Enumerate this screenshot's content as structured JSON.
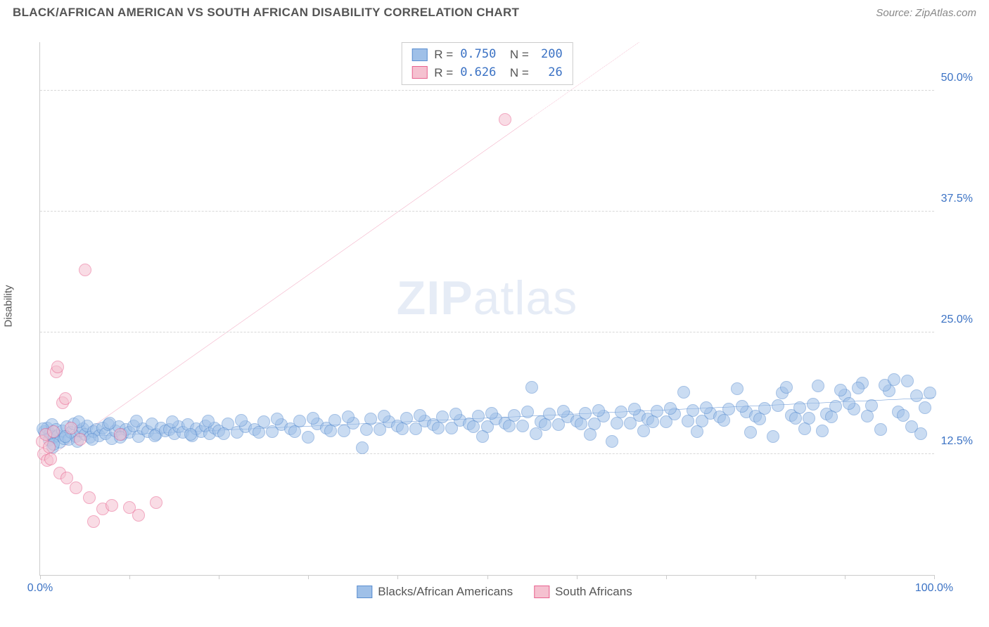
{
  "title": "BLACK/AFRICAN AMERICAN VS SOUTH AFRICAN DISABILITY CORRELATION CHART",
  "source_prefix": "Source: ",
  "source": "ZipAtlas.com",
  "ylabel": "Disability",
  "watermark_bold": "ZIP",
  "watermark_rest": "atlas",
  "watermark_color": "#9fb8dd",
  "chart": {
    "type": "scatter",
    "background_color": "#ffffff",
    "grid_color": "#d8d8d8",
    "axis_color": "#cccccc",
    "xlim": [
      0,
      100
    ],
    "ylim": [
      0,
      55
    ],
    "x_ticks": [
      0,
      10,
      20,
      30,
      40,
      50,
      60,
      70,
      80,
      90,
      100
    ],
    "x_tick_labels": {
      "0": "0.0%",
      "100": "100.0%"
    },
    "y_ticks": [
      12.5,
      25.0,
      37.5,
      50.0
    ],
    "y_tick_labels": [
      "12.5%",
      "25.0%",
      "37.5%",
      "50.0%"
    ],
    "tick_label_color": "#3b72c4",
    "tick_label_fontsize": 16,
    "marker_radius": 9,
    "marker_opacity": 0.55
  },
  "series": [
    {
      "name": "Blacks/African Americans",
      "fill": "#9fc0e8",
      "stroke": "#5a8ed0",
      "line_color": "#2f6fc4",
      "r": "0.750",
      "n": "200",
      "trend": {
        "x1": 0,
        "y1": 14.1,
        "x2": 100,
        "y2": 18.3,
        "dash": false
      },
      "points": [
        [
          0.5,
          14.8
        ],
        [
          0.8,
          15.2
        ],
        [
          1.0,
          13.9
        ],
        [
          1.1,
          14.6
        ],
        [
          1.3,
          15.5
        ],
        [
          1.4,
          13.2
        ],
        [
          1.6,
          14.2
        ],
        [
          1.8,
          15.0
        ],
        [
          2.0,
          14.4
        ],
        [
          2.2,
          13.7
        ],
        [
          2.5,
          14.9
        ],
        [
          2.7,
          14.1
        ],
        [
          3.0,
          15.3
        ],
        [
          3.2,
          14.0
        ],
        [
          3.5,
          14.7
        ],
        [
          3.8,
          15.6
        ],
        [
          4.0,
          14.3
        ],
        [
          4.2,
          13.8
        ],
        [
          4.5,
          14.9
        ],
        [
          4.8,
          15.1
        ],
        [
          5.0,
          14.5
        ],
        [
          5.3,
          15.4
        ],
        [
          5.6,
          14.2
        ],
        [
          6.0,
          14.8
        ],
        [
          6.3,
          15.0
        ],
        [
          6.6,
          14.4
        ],
        [
          7.0,
          15.2
        ],
        [
          7.3,
          14.6
        ],
        [
          7.6,
          15.5
        ],
        [
          8.0,
          14.1
        ],
        [
          8.4,
          14.9
        ],
        [
          8.8,
          15.3
        ],
        [
          9.2,
          14.5
        ],
        [
          9.6,
          15.0
        ],
        [
          10.0,
          14.7
        ],
        [
          10.5,
          15.4
        ],
        [
          11.0,
          14.3
        ],
        [
          11.5,
          15.1
        ],
        [
          12.0,
          14.8
        ],
        [
          12.5,
          15.6
        ],
        [
          13.0,
          14.5
        ],
        [
          13.5,
          15.2
        ],
        [
          14.0,
          14.9
        ],
        [
          14.5,
          15.0
        ],
        [
          15.0,
          14.6
        ],
        [
          15.5,
          15.3
        ],
        [
          16.0,
          14.7
        ],
        [
          16.5,
          15.5
        ],
        [
          17.0,
          14.4
        ],
        [
          17.5,
          15.1
        ],
        [
          18.0,
          14.8
        ],
        [
          18.5,
          15.4
        ],
        [
          19.0,
          14.6
        ],
        [
          19.5,
          15.2
        ],
        [
          20.0,
          14.9
        ],
        [
          21.0,
          15.6
        ],
        [
          22.0,
          14.7
        ],
        [
          23.0,
          15.3
        ],
        [
          24.0,
          15.0
        ],
        [
          25.0,
          15.8
        ],
        [
          26.0,
          14.8
        ],
        [
          27.0,
          15.5
        ],
        [
          28.0,
          15.1
        ],
        [
          29.0,
          15.9
        ],
        [
          30.0,
          14.2
        ],
        [
          31.0,
          15.6
        ],
        [
          32.0,
          15.2
        ],
        [
          33.0,
          16.0
        ],
        [
          34.0,
          14.9
        ],
        [
          35.0,
          15.7
        ],
        [
          36.0,
          13.1
        ],
        [
          37.0,
          16.1
        ],
        [
          38.0,
          15.0
        ],
        [
          39.0,
          15.8
        ],
        [
          40.0,
          15.4
        ],
        [
          41.0,
          16.2
        ],
        [
          42.0,
          15.1
        ],
        [
          43.0,
          15.9
        ],
        [
          44.0,
          15.5
        ],
        [
          45.0,
          16.3
        ],
        [
          46.0,
          15.2
        ],
        [
          47.0,
          16.0
        ],
        [
          48.0,
          15.6
        ],
        [
          49.0,
          16.4
        ],
        [
          50.0,
          15.3
        ],
        [
          51.0,
          16.1
        ],
        [
          52.0,
          15.7
        ],
        [
          53.0,
          16.5
        ],
        [
          54.0,
          15.4
        ],
        [
          55.0,
          19.4
        ],
        [
          56.0,
          15.8
        ],
        [
          57.0,
          16.6
        ],
        [
          58.0,
          15.5
        ],
        [
          59.0,
          16.3
        ],
        [
          60.0,
          15.9
        ],
        [
          61.0,
          16.7
        ],
        [
          62.0,
          15.6
        ],
        [
          63.0,
          16.4
        ],
        [
          64.0,
          13.8
        ],
        [
          65.0,
          16.8
        ],
        [
          66.0,
          15.7
        ],
        [
          67.0,
          16.5
        ],
        [
          68.0,
          16.1
        ],
        [
          69.0,
          16.9
        ],
        [
          70.0,
          15.8
        ],
        [
          71.0,
          16.6
        ],
        [
          72.0,
          18.9
        ],
        [
          73.0,
          17.0
        ],
        [
          74.0,
          15.9
        ],
        [
          75.0,
          16.7
        ],
        [
          76.0,
          16.3
        ],
        [
          77.0,
          17.1
        ],
        [
          78.0,
          19.2
        ],
        [
          79.0,
          16.8
        ],
        [
          80.0,
          16.4
        ],
        [
          81.0,
          17.2
        ],
        [
          82.0,
          14.3
        ],
        [
          83.0,
          18.8
        ],
        [
          84.0,
          16.5
        ],
        [
          85.0,
          17.3
        ],
        [
          86.0,
          16.2
        ],
        [
          87.0,
          19.5
        ],
        [
          88.0,
          16.6
        ],
        [
          89.0,
          17.4
        ],
        [
          90.0,
          18.6
        ],
        [
          91.0,
          17.1
        ],
        [
          92.0,
          19.8
        ],
        [
          93.0,
          17.5
        ],
        [
          94.0,
          15.0
        ],
        [
          95.0,
          19.0
        ],
        [
          96.0,
          16.8
        ],
        [
          97.0,
          20.0
        ],
        [
          98.0,
          18.5
        ],
        [
          99.0,
          17.3
        ],
        [
          99.5,
          18.8
        ],
        [
          0.3,
          15.1
        ],
        [
          1.5,
          13.5
        ],
        [
          2.8,
          14.3
        ],
        [
          4.3,
          15.8
        ],
        [
          5.8,
          14.0
        ],
        [
          7.8,
          15.7
        ],
        [
          9.0,
          14.2
        ],
        [
          10.8,
          15.9
        ],
        [
          12.8,
          14.4
        ],
        [
          14.8,
          15.8
        ],
        [
          16.8,
          14.5
        ],
        [
          18.8,
          15.9
        ],
        [
          20.5,
          14.6
        ],
        [
          22.5,
          16.0
        ],
        [
          24.5,
          14.7
        ],
        [
          26.5,
          16.1
        ],
        [
          28.5,
          14.8
        ],
        [
          30.5,
          16.2
        ],
        [
          32.5,
          14.9
        ],
        [
          34.5,
          16.3
        ],
        [
          36.5,
          15.0
        ],
        [
          38.5,
          16.4
        ],
        [
          40.5,
          15.1
        ],
        [
          42.5,
          16.5
        ],
        [
          44.5,
          15.2
        ],
        [
          46.5,
          16.6
        ],
        [
          48.5,
          15.3
        ],
        [
          50.5,
          16.7
        ],
        [
          52.5,
          15.4
        ],
        [
          54.5,
          16.8
        ],
        [
          56.5,
          15.5
        ],
        [
          58.5,
          16.9
        ],
        [
          60.5,
          15.6
        ],
        [
          62.5,
          17.0
        ],
        [
          64.5,
          15.7
        ],
        [
          66.5,
          17.1
        ],
        [
          68.5,
          15.8
        ],
        [
          70.5,
          17.2
        ],
        [
          72.5,
          15.9
        ],
        [
          74.5,
          17.3
        ],
        [
          76.5,
          16.0
        ],
        [
          78.5,
          17.4
        ],
        [
          80.5,
          16.1
        ],
        [
          82.5,
          17.5
        ],
        [
          84.5,
          16.2
        ],
        [
          86.5,
          17.6
        ],
        [
          88.5,
          16.3
        ],
        [
          90.5,
          17.7
        ],
        [
          92.5,
          16.4
        ],
        [
          94.5,
          19.6
        ],
        [
          96.5,
          16.5
        ],
        [
          98.5,
          14.6
        ],
        [
          83.5,
          19.4
        ],
        [
          87.5,
          14.9
        ],
        [
          91.5,
          19.3
        ],
        [
          95.5,
          20.2
        ],
        [
          97.5,
          15.3
        ],
        [
          89.5,
          19.1
        ],
        [
          85.5,
          15.1
        ],
        [
          79.5,
          14.7
        ],
        [
          73.5,
          14.8
        ],
        [
          67.5,
          14.9
        ],
        [
          61.5,
          14.5
        ],
        [
          55.5,
          14.6
        ],
        [
          49.5,
          14.3
        ]
      ]
    },
    {
      "name": "South Africans",
      "fill": "#f5c1d0",
      "stroke": "#e8628f",
      "line_color": "#e8628f",
      "r": "0.626",
      "n": "26",
      "trend": {
        "x1": 0,
        "y1": 11.5,
        "x2": 67,
        "y2": 55,
        "dash_from_x": 55
      },
      "points": [
        [
          0.2,
          13.8
        ],
        [
          0.4,
          12.5
        ],
        [
          0.6,
          14.5
        ],
        [
          0.8,
          11.8
        ],
        [
          1.0,
          13.2
        ],
        [
          1.2,
          12.0
        ],
        [
          1.5,
          14.8
        ],
        [
          1.8,
          21.0
        ],
        [
          2.0,
          21.5
        ],
        [
          2.2,
          10.5
        ],
        [
          2.5,
          17.8
        ],
        [
          2.8,
          18.2
        ],
        [
          3.0,
          10.0
        ],
        [
          3.5,
          15.2
        ],
        [
          4.0,
          9.0
        ],
        [
          4.5,
          14.0
        ],
        [
          5.0,
          31.5
        ],
        [
          5.5,
          8.0
        ],
        [
          6.0,
          5.5
        ],
        [
          7.0,
          6.8
        ],
        [
          8.0,
          7.2
        ],
        [
          9.0,
          14.5
        ],
        [
          10.0,
          7.0
        ],
        [
          11.0,
          6.2
        ],
        [
          13.0,
          7.5
        ],
        [
          52.0,
          47.0
        ]
      ]
    }
  ],
  "legend_bottom": [
    {
      "label": "Blacks/African Americans",
      "fill": "#9fc0e8",
      "stroke": "#5a8ed0"
    },
    {
      "label": "South Africans",
      "fill": "#f5c1d0",
      "stroke": "#e8628f"
    }
  ]
}
